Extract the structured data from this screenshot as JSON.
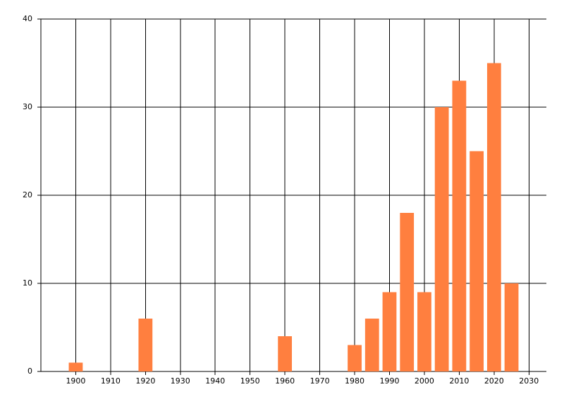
{
  "chart_data": {
    "type": "bar",
    "x": [
      1900,
      1920,
      1960,
      1980,
      1985,
      1990,
      1995,
      2000,
      2005,
      2010,
      2015,
      2020,
      2025
    ],
    "values": [
      1,
      6,
      4,
      3,
      6,
      9,
      18,
      9,
      30,
      33,
      25,
      35,
      10
    ],
    "color": "#ff7f3f",
    "xlim": [
      1890,
      2035
    ],
    "xticks": [
      1900,
      1910,
      1920,
      1930,
      1940,
      1950,
      1960,
      1970,
      1980,
      1990,
      2000,
      2010,
      2020,
      2030
    ],
    "ylim": [
      0,
      40
    ],
    "yticks": [
      0,
      10,
      20,
      30,
      40
    ],
    "grid": true
  }
}
